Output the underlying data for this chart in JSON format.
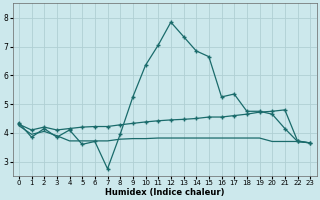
{
  "xlabel": "Humidex (Indice chaleur)",
  "ylabel": "",
  "background_color": "#cce8ec",
  "grid_color": "#b0cfd4",
  "line_color": "#1a6b6b",
  "xlim": [
    -0.5,
    23.5
  ],
  "ylim": [
    2.5,
    8.5
  ],
  "xticks": [
    0,
    1,
    2,
    3,
    4,
    5,
    6,
    7,
    8,
    9,
    10,
    11,
    12,
    13,
    14,
    15,
    16,
    17,
    18,
    19,
    20,
    21,
    22,
    23
  ],
  "yticks": [
    3,
    4,
    5,
    6,
    7,
    8
  ],
  "curve1_x": [
    0,
    1,
    2,
    3,
    4,
    5,
    6,
    7,
    8,
    9,
    10,
    11,
    12,
    13,
    14,
    15,
    16,
    17,
    18,
    19,
    20,
    21,
    22,
    23
  ],
  "curve1_y": [
    4.35,
    3.85,
    4.15,
    3.85,
    4.1,
    3.6,
    3.7,
    2.75,
    3.95,
    5.25,
    6.35,
    7.05,
    7.85,
    7.35,
    6.85,
    6.65,
    5.25,
    5.35,
    4.75,
    4.75,
    4.65,
    4.15,
    3.7,
    3.65
  ],
  "curve2_x": [
    0,
    1,
    2,
    3,
    4,
    5,
    6,
    7,
    8,
    9,
    10,
    11,
    12,
    13,
    14,
    15,
    16,
    17,
    18,
    19,
    20,
    21,
    22,
    23
  ],
  "curve2_y": [
    4.3,
    4.1,
    4.2,
    4.1,
    4.15,
    4.2,
    4.22,
    4.22,
    4.28,
    4.33,
    4.38,
    4.42,
    4.45,
    4.47,
    4.5,
    4.55,
    4.55,
    4.6,
    4.65,
    4.72,
    4.75,
    4.8,
    3.72,
    3.65
  ],
  "curve3_x": [
    0,
    1,
    2,
    3,
    4,
    5,
    6,
    7,
    8,
    9,
    10,
    11,
    12,
    13,
    14,
    15,
    16,
    17,
    18,
    19,
    20,
    21,
    22,
    23
  ],
  "curve3_y": [
    4.25,
    3.95,
    4.05,
    3.9,
    3.72,
    3.72,
    3.72,
    3.72,
    3.78,
    3.8,
    3.8,
    3.82,
    3.82,
    3.82,
    3.82,
    3.82,
    3.82,
    3.82,
    3.82,
    3.82,
    3.7,
    3.7,
    3.7,
    3.65
  ]
}
